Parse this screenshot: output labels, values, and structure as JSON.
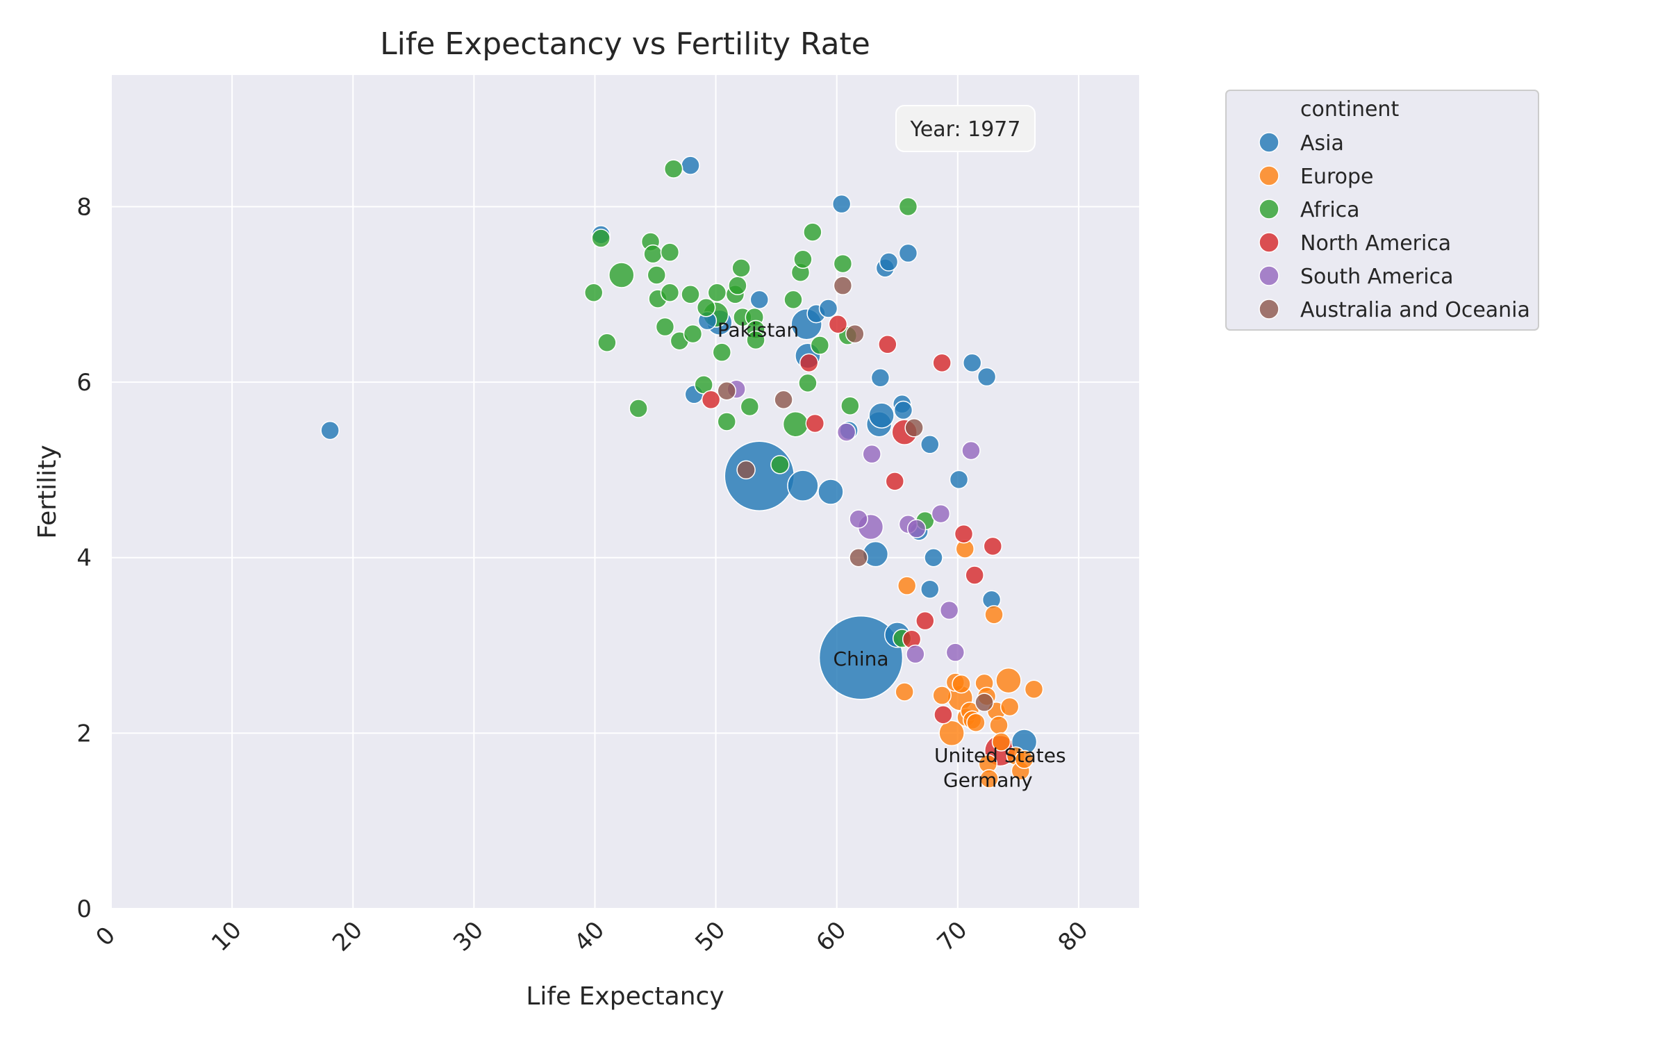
{
  "chart_data": {
    "type": "scatter",
    "title": "Life Expectancy vs Fertility Rate",
    "xlabel": "Life Expectancy",
    "ylabel": "Fertility",
    "xlim": [
      0,
      85
    ],
    "ylim": [
      0,
      9.5
    ],
    "xticks": [
      "0",
      "10",
      "20",
      "30",
      "40",
      "50",
      "60",
      "70",
      "80"
    ],
    "yticks": [
      "0",
      "2",
      "4",
      "6",
      "8"
    ],
    "grid": true,
    "legend": {
      "title": "continent",
      "placement": "outside-top-right",
      "entries": [
        "Asia",
        "Europe",
        "Africa",
        "North America",
        "South America",
        "Australia and Oceania"
      ]
    },
    "year_label": "Year: 1977",
    "colors": {
      "Asia": "#1f77b4",
      "Europe": "#ff7f0e",
      "Africa": "#2ca02c",
      "North America": "#d62728",
      "South America": "#9467bd",
      "Australia and Oceania": "#8c564b"
    },
    "annotations": [
      {
        "text": "Pakistan",
        "x": 53.5,
        "y": 6.6
      },
      {
        "text": "China",
        "x": 62.0,
        "y": 2.85
      },
      {
        "text": "United States",
        "x": 73.5,
        "y": 1.75
      },
      {
        "text": "Germany",
        "x": 72.5,
        "y": 1.47
      }
    ],
    "series": [
      {
        "name": "Asia",
        "points": [
          [
            18.1,
            5.45,
            1
          ],
          [
            40.5,
            7.68,
            1
          ],
          [
            47.9,
            8.47,
            1
          ],
          [
            48.2,
            5.86,
            1
          ],
          [
            49.3,
            6.7,
            1
          ],
          [
            50.3,
            6.68,
            2
          ],
          [
            53.6,
            6.94,
            1
          ],
          [
            53.6,
            4.93,
            9
          ],
          [
            57.2,
            4.82,
            3
          ],
          [
            57.5,
            6.66,
            3
          ],
          [
            57.6,
            6.3,
            2
          ],
          [
            58.3,
            6.78,
            1
          ],
          [
            59.3,
            6.84,
            1
          ],
          [
            59.5,
            4.75,
            2
          ],
          [
            60.4,
            8.03,
            1
          ],
          [
            61.0,
            5.45,
            1
          ],
          [
            62.0,
            2.86,
            11
          ],
          [
            63.2,
            4.04,
            2
          ],
          [
            63.5,
            5.52,
            2
          ],
          [
            63.6,
            6.05,
            1
          ],
          [
            63.7,
            5.62,
            2
          ],
          [
            64.0,
            7.3,
            1
          ],
          [
            64.3,
            7.37,
            1
          ],
          [
            65.0,
            3.12,
            2
          ],
          [
            65.4,
            5.75,
            1
          ],
          [
            65.5,
            5.68,
            1
          ],
          [
            65.9,
            7.47,
            1
          ],
          [
            66.8,
            4.3,
            1
          ],
          [
            67.7,
            5.29,
            1
          ],
          [
            67.7,
            3.64,
            1
          ],
          [
            68.0,
            4.0,
            1
          ],
          [
            70.1,
            4.89,
            1
          ],
          [
            71.2,
            6.22,
            1
          ],
          [
            72.4,
            6.06,
            1
          ],
          [
            72.8,
            3.52,
            1
          ],
          [
            75.5,
            1.9,
            2
          ]
        ]
      },
      {
        "name": "Europe",
        "points": [
          [
            65.6,
            2.47,
            1
          ],
          [
            65.8,
            3.68,
            1
          ],
          [
            68.7,
            2.43,
            1
          ],
          [
            69.5,
            2.0,
            2
          ],
          [
            69.8,
            2.58,
            1
          ],
          [
            70.2,
            2.4,
            2
          ],
          [
            70.3,
            2.56,
            1
          ],
          [
            70.6,
            4.1,
            1
          ],
          [
            70.7,
            2.18,
            1
          ],
          [
            71.0,
            2.25,
            1
          ],
          [
            71.2,
            2.15,
            1
          ],
          [
            71.5,
            2.12,
            1
          ],
          [
            72.2,
            2.57,
            1
          ],
          [
            72.4,
            2.42,
            1
          ],
          [
            72.5,
            1.65,
            1
          ],
          [
            72.6,
            1.48,
            1
          ],
          [
            73.0,
            3.35,
            1
          ],
          [
            73.2,
            2.25,
            1
          ],
          [
            73.4,
            2.09,
            1
          ],
          [
            73.6,
            1.9,
            1
          ],
          [
            74.2,
            2.6,
            2
          ],
          [
            74.3,
            2.3,
            1
          ],
          [
            74.8,
            1.74,
            1
          ],
          [
            75.2,
            1.57,
            1
          ],
          [
            75.5,
            1.7,
            1
          ],
          [
            76.3,
            2.5,
            1
          ]
        ]
      },
      {
        "name": "Africa",
        "points": [
          [
            39.9,
            7.02,
            1
          ],
          [
            40.5,
            7.64,
            1
          ],
          [
            41.0,
            6.45,
            1
          ],
          [
            42.2,
            7.22,
            2
          ],
          [
            43.6,
            5.7,
            1
          ],
          [
            44.6,
            7.6,
            1
          ],
          [
            44.8,
            7.46,
            1
          ],
          [
            45.1,
            7.22,
            1
          ],
          [
            45.2,
            6.95,
            1
          ],
          [
            45.8,
            6.63,
            1
          ],
          [
            46.2,
            7.48,
            1
          ],
          [
            46.2,
            7.02,
            1
          ],
          [
            46.5,
            8.43,
            1
          ],
          [
            47.0,
            6.47,
            1
          ],
          [
            47.9,
            7.0,
            1
          ],
          [
            48.1,
            6.55,
            1
          ],
          [
            49.0,
            5.97,
            1
          ],
          [
            49.2,
            6.85,
            1
          ],
          [
            50.0,
            6.77,
            2
          ],
          [
            50.1,
            7.02,
            1
          ],
          [
            50.5,
            6.34,
            1
          ],
          [
            50.9,
            5.55,
            1
          ],
          [
            51.6,
            7.0,
            1
          ],
          [
            51.8,
            7.1,
            1
          ],
          [
            52.1,
            7.3,
            1
          ],
          [
            52.2,
            6.74,
            1
          ],
          [
            52.8,
            5.72,
            1
          ],
          [
            53.2,
            6.74,
            1
          ],
          [
            53.3,
            6.6,
            1
          ],
          [
            53.3,
            6.48,
            1
          ],
          [
            55.3,
            5.06,
            1
          ],
          [
            56.4,
            6.94,
            1
          ],
          [
            56.6,
            5.52,
            2
          ],
          [
            57.0,
            7.25,
            1
          ],
          [
            57.2,
            7.4,
            1
          ],
          [
            57.6,
            5.99,
            1
          ],
          [
            58.0,
            7.71,
            1
          ],
          [
            58.6,
            6.42,
            1
          ],
          [
            60.5,
            7.35,
            1
          ],
          [
            60.9,
            6.53,
            1
          ],
          [
            61.1,
            5.73,
            1
          ],
          [
            65.4,
            3.08,
            1
          ],
          [
            65.9,
            8.0,
            1
          ],
          [
            67.3,
            4.42,
            1
          ]
        ]
      },
      {
        "name": "North America",
        "points": [
          [
            49.6,
            5.8,
            1
          ],
          [
            57.7,
            6.22,
            1
          ],
          [
            58.2,
            5.53,
            1
          ],
          [
            60.1,
            6.66,
            1
          ],
          [
            64.2,
            6.43,
            1
          ],
          [
            64.8,
            4.87,
            1
          ],
          [
            65.6,
            5.43,
            2
          ],
          [
            66.2,
            3.07,
            1
          ],
          [
            67.3,
            3.28,
            1
          ],
          [
            68.7,
            6.22,
            1
          ],
          [
            68.8,
            2.21,
            1
          ],
          [
            70.5,
            4.27,
            1
          ],
          [
            71.4,
            3.8,
            1
          ],
          [
            72.9,
            4.13,
            1
          ],
          [
            73.5,
            1.8,
            3
          ]
        ]
      },
      {
        "name": "South America",
        "points": [
          [
            51.7,
            5.92,
            1
          ],
          [
            60.8,
            5.43,
            1
          ],
          [
            61.8,
            4.44,
            1
          ],
          [
            62.8,
            4.35,
            2
          ],
          [
            62.9,
            5.18,
            1
          ],
          [
            65.9,
            4.38,
            1
          ],
          [
            66.6,
            4.33,
            1
          ],
          [
            66.5,
            2.9,
            1
          ],
          [
            68.6,
            4.5,
            1
          ],
          [
            69.3,
            3.4,
            1
          ],
          [
            69.8,
            2.92,
            1
          ],
          [
            71.1,
            5.22,
            1
          ]
        ]
      },
      {
        "name": "Australia and Oceania",
        "points": [
          [
            50.9,
            5.9,
            1
          ],
          [
            52.5,
            5.0,
            1
          ],
          [
            55.6,
            5.8,
            1
          ],
          [
            60.5,
            7.1,
            1
          ],
          [
            61.5,
            6.55,
            1
          ],
          [
            61.8,
            4.0,
            1
          ],
          [
            66.4,
            5.48,
            1
          ],
          [
            72.2,
            2.35,
            1
          ]
        ]
      }
    ]
  }
}
